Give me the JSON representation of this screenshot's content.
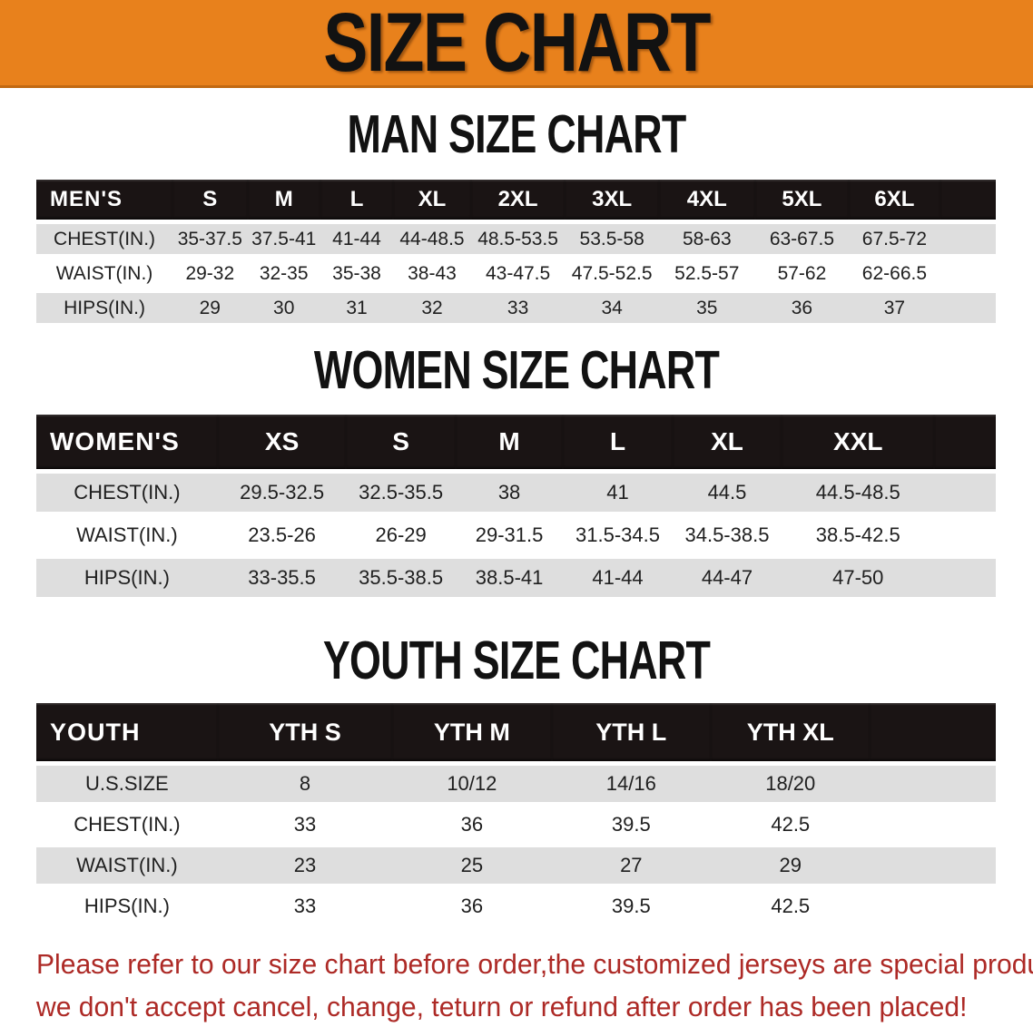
{
  "banner": {
    "title": "SIZE CHART"
  },
  "colors": {
    "banner_bg": "#E8811C",
    "header_bg": "#1A1414",
    "row_gray": "#DEDEDE",
    "footer_red": "#AD2A26",
    "heading_black": "#121212"
  },
  "sections": [
    {
      "id": "men",
      "heading": "MAN SIZE CHART",
      "corner_label": "MEN'S",
      "columns": [
        "S",
        "M",
        "L",
        "XL",
        "2XL",
        "3XL",
        "4XL",
        "5XL",
        "6XL"
      ],
      "rows": [
        {
          "label": "CHEST(IN.)",
          "values": [
            "35-37.5",
            "37.5-41",
            "41-44",
            "44-48.5",
            "48.5-53.5",
            "53.5-58",
            "58-63",
            "63-67.5",
            "67.5-72"
          ]
        },
        {
          "label": "WAIST(IN.)",
          "values": [
            "29-32",
            "32-35",
            "35-38",
            "38-43",
            "43-47.5",
            "47.5-52.5",
            "52.5-57",
            "57-62",
            "62-66.5"
          ]
        },
        {
          "label": "HIPS(IN.)",
          "values": [
            "29",
            "30",
            "31",
            "32",
            "33",
            "34",
            "35",
            "36",
            "37"
          ]
        }
      ]
    },
    {
      "id": "women",
      "heading": "WOMEN SIZE CHART",
      "corner_label": "WOMEN'S",
      "columns": [
        "XS",
        "S",
        "M",
        "L",
        "XL",
        "XXL"
      ],
      "rows": [
        {
          "label": "CHEST(IN.)",
          "values": [
            "29.5-32.5",
            "32.5-35.5",
            "38",
            "41",
            "44.5",
            "44.5-48.5"
          ]
        },
        {
          "label": "WAIST(IN.)",
          "values": [
            "23.5-26",
            "26-29",
            "29-31.5",
            "31.5-34.5",
            "34.5-38.5",
            "38.5-42.5"
          ]
        },
        {
          "label": "HIPS(IN.)",
          "values": [
            "33-35.5",
            "35.5-38.5",
            "38.5-41",
            "41-44",
            "44-47",
            "47-50"
          ]
        }
      ]
    },
    {
      "id": "youth",
      "heading": "YOUTH SIZE CHART",
      "corner_label": "YOUTH",
      "columns": [
        "YTH S",
        "YTH M",
        "YTH L",
        "YTH XL"
      ],
      "rows": [
        {
          "label": "U.S.SIZE",
          "values": [
            "8",
            "10/12",
            "14/16",
            "18/20"
          ]
        },
        {
          "label": "CHEST(IN.)",
          "values": [
            "33",
            "36",
            "39.5",
            "42.5"
          ]
        },
        {
          "label": "WAIST(IN.)",
          "values": [
            "23",
            "25",
            "27",
            "29"
          ]
        },
        {
          "label": "HIPS(IN.)",
          "values": [
            "33",
            "36",
            "39.5",
            "42.5"
          ]
        }
      ]
    }
  ],
  "footer": {
    "line1": "Please refer to our size chart before order,the customized jerseys are special products,",
    "line2": "we don't accept cancel, change, teturn or refund after order has been placed!"
  }
}
